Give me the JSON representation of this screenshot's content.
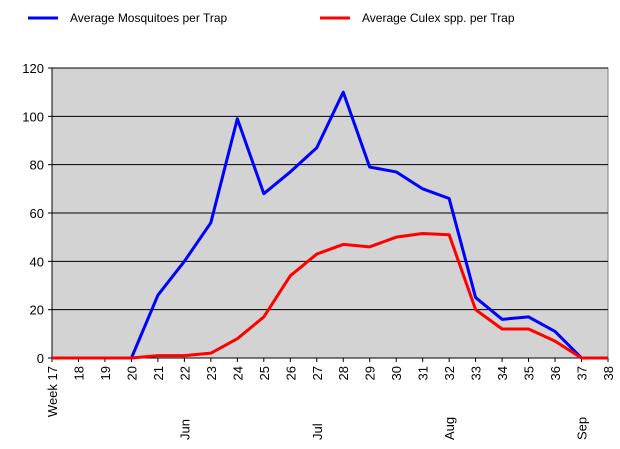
{
  "chart_data": {
    "type": "line",
    "categories": [
      "Week 17",
      "18",
      "19",
      "20",
      "21",
      "22",
      "23",
      "24",
      "25",
      "26",
      "27",
      "28",
      "29",
      "30",
      "31",
      "32",
      "33",
      "34",
      "35",
      "36",
      "37",
      "38"
    ],
    "x_group_labels": [
      null,
      null,
      null,
      null,
      null,
      "Jun",
      null,
      null,
      null,
      null,
      "Jul",
      null,
      null,
      null,
      null,
      "Aug",
      null,
      null,
      null,
      null,
      "Sep",
      null
    ],
    "series": [
      {
        "name": "Average Mosquitoes per Trap",
        "color": "#0000ff",
        "values": [
          0,
          0,
          0,
          0,
          26,
          40,
          56,
          99,
          68,
          77,
          87,
          110,
          79,
          77,
          70,
          66,
          25,
          16,
          17,
          11,
          0,
          0
        ]
      },
      {
        "name": "Average Culex spp. per Trap",
        "color": "#ff0000",
        "values": [
          0,
          0,
          0,
          0,
          1,
          1,
          2,
          8,
          17,
          34,
          43,
          47,
          46,
          50,
          51.5,
          51,
          20,
          12,
          12,
          7,
          0,
          0
        ]
      }
    ],
    "ylim": [
      0,
      120
    ],
    "yticks": [
      0,
      20,
      40,
      60,
      80,
      100,
      120
    ],
    "grid": true,
    "legend": "top"
  }
}
